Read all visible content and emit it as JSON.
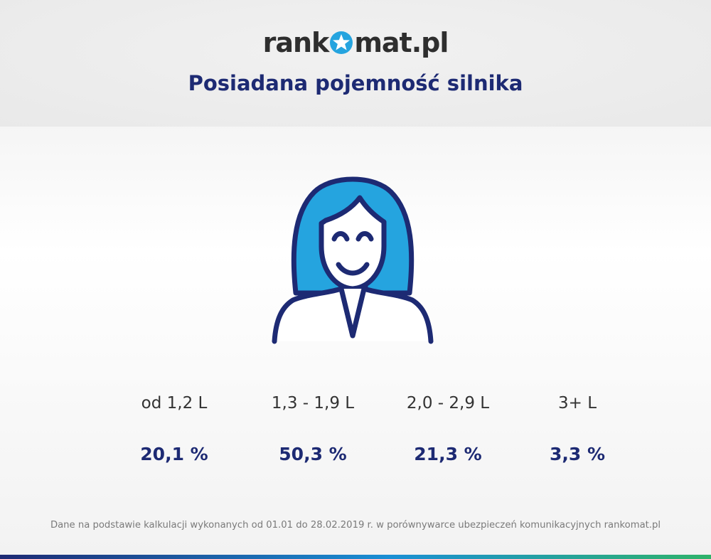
{
  "brand": {
    "logo_left": "rank",
    "logo_right": "mat.pl"
  },
  "colors": {
    "accent_navy": "#1d2a73",
    "accent_blue": "#25a4df",
    "bar_green": "#2fb36a"
  },
  "icons": {
    "logo_star": "star-icon",
    "person": "woman-avatar-icon"
  },
  "chart_data": {
    "type": "table",
    "title": "Posiadana pojemność silnika",
    "categories": [
      "od 1,2 L",
      "1,3 - 1,9 L",
      "2,0 - 2,9 L",
      "3+ L"
    ],
    "values": [
      20.1,
      50.3,
      21.3,
      3.3
    ],
    "value_labels": [
      "20,1 %",
      "50,3 %",
      "21,3 %",
      "3,3 %"
    ]
  },
  "footnote": "Dane na podstawie kalkulacji wykonanych od 01.01 do 28.02.2019 r. w porównywarce ubezpieczeń komunikacyjnych rankomat.pl"
}
